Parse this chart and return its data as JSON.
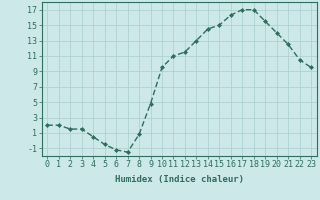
{
  "x": [
    0,
    1,
    2,
    3,
    4,
    5,
    6,
    7,
    8,
    9,
    10,
    11,
    12,
    13,
    14,
    15,
    16,
    17,
    18,
    19,
    20,
    21,
    22,
    23
  ],
  "y": [
    2,
    2,
    1.5,
    1.5,
    0.5,
    -0.5,
    -1.2,
    -1.5,
    0.8,
    4.8,
    9.5,
    11,
    11.5,
    13,
    14.5,
    15,
    16.3,
    17,
    17,
    15.5,
    14,
    12.5,
    10.5,
    9.5
  ],
  "line_color": "#2d6e5e",
  "marker": "D",
  "marker_size": 2.0,
  "bg_color": "#cce8e8",
  "grid_color": "#aacece",
  "xlabel": "Humidex (Indice chaleur)",
  "xlim": [
    -0.5,
    23.5
  ],
  "ylim": [
    -2,
    18
  ],
  "yticks": [
    -1,
    1,
    3,
    5,
    7,
    9,
    11,
    13,
    15,
    17
  ],
  "xticks": [
    0,
    1,
    2,
    3,
    4,
    5,
    6,
    7,
    8,
    9,
    10,
    11,
    12,
    13,
    14,
    15,
    16,
    17,
    18,
    19,
    20,
    21,
    22,
    23
  ],
  "xlabel_fontsize": 6.5,
  "tick_fontsize": 6.0,
  "line_width": 1.0
}
